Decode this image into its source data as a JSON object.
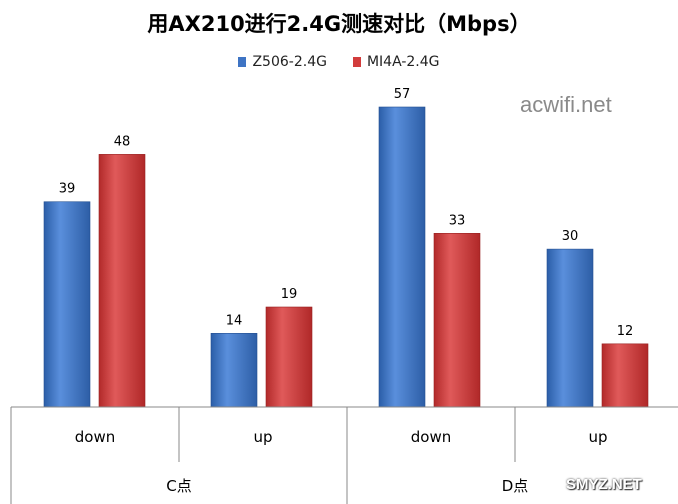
{
  "title": "用AX210进行2.4G测速对比（Mbps）",
  "legend": [
    {
      "name": "Z506-2.4G",
      "color": "#3e74c4"
    },
    {
      "name": "MI4A-2.4G",
      "color": "#d23c3c"
    }
  ],
  "watermarks": {
    "top": "acwifi.net",
    "bottom": "SMYZ.NET"
  },
  "chart_data": {
    "type": "bar",
    "title": "用AX210进行2.4G测速对比（Mbps）",
    "categories": [
      "down",
      "up",
      "down",
      "up"
    ],
    "groups": [
      "C点",
      "D点"
    ],
    "series": [
      {
        "name": "Z506-2.4G",
        "color": "#3e74c4",
        "values": [
          39,
          14,
          57,
          30
        ]
      },
      {
        "name": "MI4A-2.4G",
        "color": "#d23c3c",
        "values": [
          48,
          19,
          33,
          12
        ]
      }
    ],
    "ylim": [
      0,
      60
    ],
    "grid": false,
    "legend_position": "top"
  }
}
